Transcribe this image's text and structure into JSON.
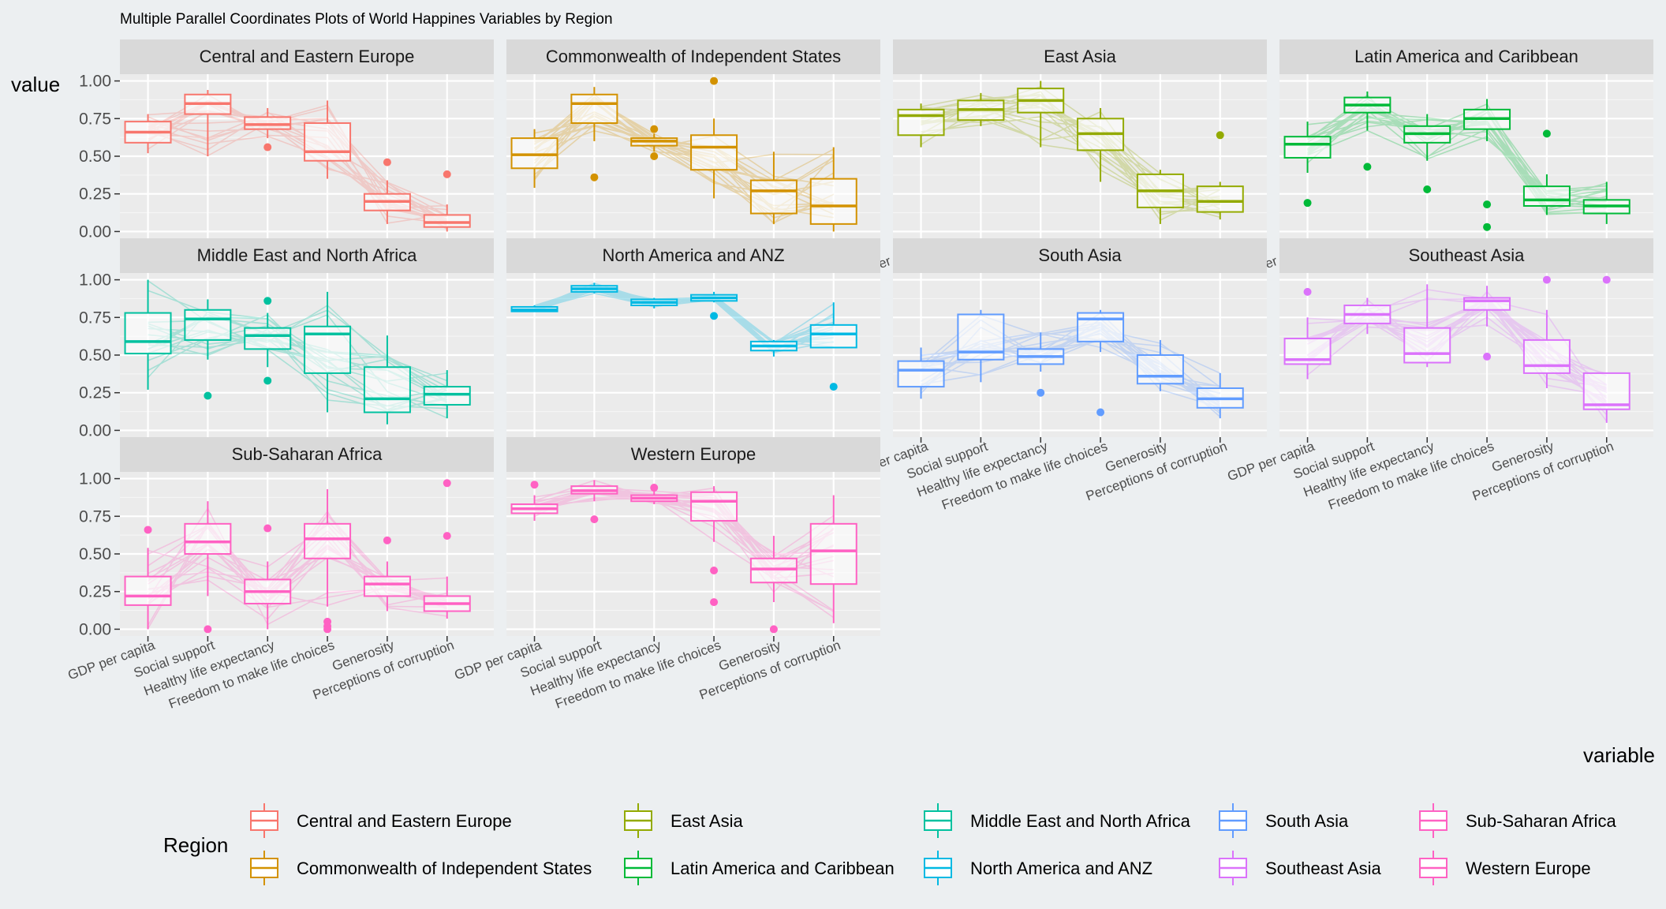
{
  "chart_data": {
    "type": "boxplot-parallel-coordinates",
    "title": "Multiple Parallel Coordinates Plots of World Happines Variables by Region",
    "xlabel": "variable",
    "ylabel": "value",
    "ylim": [
      0,
      1
    ],
    "y_ticks": [
      "0.00",
      "0.25",
      "0.50",
      "0.75",
      "1.00"
    ],
    "variables": [
      "GDP per capita",
      "Social support",
      "Healthy life expectancy",
      "Freedom to make life choices",
      "Generosity",
      "Perceptions of corruption"
    ],
    "legend_title": "Region",
    "legend_position": "bottom",
    "grid": true,
    "panels": [
      {
        "region": "Central and Eastern Europe",
        "color": "#F8766D",
        "boxes": [
          [
            0.52,
            0.59,
            0.66,
            0.73,
            0.78
          ],
          [
            0.5,
            0.78,
            0.85,
            0.91,
            0.94
          ],
          [
            0.62,
            0.68,
            0.71,
            0.76,
            0.82
          ],
          [
            0.35,
            0.47,
            0.53,
            0.72,
            0.87
          ],
          [
            0.05,
            0.14,
            0.2,
            0.25,
            0.34
          ],
          [
            0.0,
            0.03,
            0.06,
            0.11,
            0.18
          ]
        ],
        "outliers": [
          [],
          [],
          [
            0.56
          ],
          [],
          [
            0.46
          ],
          [
            0.38
          ]
        ]
      },
      {
        "region": "Commonwealth of Independent States",
        "color": "#D39200",
        "boxes": [
          [
            0.29,
            0.42,
            0.51,
            0.62,
            0.68
          ],
          [
            0.6,
            0.72,
            0.85,
            0.91,
            0.96
          ],
          [
            0.53,
            0.57,
            0.6,
            0.62,
            0.65
          ],
          [
            0.22,
            0.41,
            0.56,
            0.64,
            0.75
          ],
          [
            0.05,
            0.12,
            0.27,
            0.34,
            0.53
          ],
          [
            0.0,
            0.05,
            0.17,
            0.35,
            0.56
          ]
        ],
        "outliers": [
          [],
          [
            0.36
          ],
          [
            0.68,
            0.5
          ],
          [
            1.0
          ],
          [],
          []
        ]
      },
      {
        "region": "East Asia",
        "color": "#93AA00",
        "boxes": [
          [
            0.56,
            0.64,
            0.77,
            0.81,
            0.85
          ],
          [
            0.7,
            0.74,
            0.81,
            0.87,
            0.92
          ],
          [
            0.56,
            0.79,
            0.87,
            0.95,
            1.0
          ],
          [
            0.33,
            0.54,
            0.65,
            0.75,
            0.82
          ],
          [
            0.05,
            0.16,
            0.27,
            0.38,
            0.41
          ],
          [
            0.08,
            0.13,
            0.2,
            0.3,
            0.33
          ]
        ],
        "outliers": [
          [],
          [],
          [],
          [],
          [],
          [
            0.64
          ]
        ]
      },
      {
        "region": "Latin America and Caribbean",
        "color": "#00BA38",
        "boxes": [
          [
            0.39,
            0.49,
            0.58,
            0.63,
            0.73
          ],
          [
            0.67,
            0.79,
            0.84,
            0.89,
            0.93
          ],
          [
            0.47,
            0.59,
            0.65,
            0.7,
            0.78
          ],
          [
            0.6,
            0.68,
            0.75,
            0.81,
            0.88
          ],
          [
            0.11,
            0.17,
            0.21,
            0.3,
            0.38
          ],
          [
            0.05,
            0.12,
            0.17,
            0.21,
            0.33
          ]
        ],
        "outliers": [
          [
            0.19
          ],
          [
            0.43
          ],
          [
            0.28
          ],
          [
            0.18,
            0.03
          ],
          [
            0.65
          ],
          []
        ]
      },
      {
        "region": "Middle East and North Africa",
        "color": "#00C19F",
        "boxes": [
          [
            0.27,
            0.51,
            0.59,
            0.78,
            1.0
          ],
          [
            0.47,
            0.6,
            0.74,
            0.8,
            0.87
          ],
          [
            0.42,
            0.54,
            0.63,
            0.68,
            0.78
          ],
          [
            0.12,
            0.38,
            0.64,
            0.69,
            0.92
          ],
          [
            0.04,
            0.12,
            0.21,
            0.42,
            0.63
          ],
          [
            0.08,
            0.17,
            0.24,
            0.29,
            0.4
          ]
        ],
        "outliers": [
          [],
          [
            0.23
          ],
          [
            0.86,
            0.33
          ],
          [],
          [],
          []
        ]
      },
      {
        "region": "North America and ANZ",
        "color": "#00B9E3",
        "boxes": [
          [
            0.79,
            0.79,
            0.8,
            0.82,
            0.83
          ],
          [
            0.91,
            0.92,
            0.94,
            0.96,
            0.98
          ],
          [
            0.81,
            0.83,
            0.85,
            0.87,
            0.88
          ],
          [
            0.85,
            0.86,
            0.88,
            0.9,
            0.92
          ],
          [
            0.49,
            0.53,
            0.56,
            0.59,
            0.6
          ],
          [
            0.55,
            0.55,
            0.64,
            0.7,
            0.85
          ]
        ],
        "outliers": [
          [],
          [],
          [],
          [
            0.76
          ],
          [],
          [
            0.29
          ]
        ]
      },
      {
        "region": "South Asia",
        "color": "#619CFF",
        "boxes": [
          [
            0.21,
            0.29,
            0.4,
            0.46,
            0.55
          ],
          [
            0.32,
            0.47,
            0.52,
            0.77,
            0.8
          ],
          [
            0.39,
            0.44,
            0.49,
            0.54,
            0.65
          ],
          [
            0.52,
            0.59,
            0.74,
            0.78,
            0.8
          ],
          [
            0.26,
            0.31,
            0.36,
            0.5,
            0.6
          ],
          [
            0.08,
            0.15,
            0.21,
            0.28,
            0.38
          ]
        ],
        "outliers": [
          [],
          [],
          [
            0.25
          ],
          [
            0.12
          ],
          [],
          []
        ]
      },
      {
        "region": "Southeast Asia",
        "color": "#DB72FB",
        "boxes": [
          [
            0.34,
            0.44,
            0.47,
            0.61,
            0.75
          ],
          [
            0.64,
            0.71,
            0.77,
            0.83,
            0.88
          ],
          [
            0.42,
            0.45,
            0.51,
            0.68,
            0.97
          ],
          [
            0.69,
            0.8,
            0.86,
            0.88,
            0.96
          ],
          [
            0.28,
            0.38,
            0.43,
            0.6,
            0.8
          ],
          [
            0.05,
            0.14,
            0.17,
            0.38,
            0.38
          ]
        ],
        "outliers": [
          [
            0.92
          ],
          [],
          [],
          [
            0.49
          ],
          [
            1.0
          ],
          [
            1.0
          ]
        ]
      },
      {
        "region": "Sub-Saharan Africa",
        "color": "#FF61C3",
        "boxes": [
          [
            0.0,
            0.16,
            0.22,
            0.35,
            0.54
          ],
          [
            0.22,
            0.5,
            0.58,
            0.7,
            0.85
          ],
          [
            0.0,
            0.17,
            0.25,
            0.33,
            0.45
          ],
          [
            0.15,
            0.47,
            0.6,
            0.7,
            0.93
          ],
          [
            0.12,
            0.22,
            0.3,
            0.35,
            0.45
          ],
          [
            0.07,
            0.12,
            0.17,
            0.22,
            0.35
          ]
        ],
        "outliers": [
          [
            0.66
          ],
          [
            0.0
          ],
          [
            0.67
          ],
          [
            0.05,
            0.02,
            0.0
          ],
          [
            0.59
          ],
          [
            0.97,
            0.62
          ]
        ]
      },
      {
        "region": "Western Europe",
        "color": "#FF61C3",
        "boxes": [
          [
            0.72,
            0.77,
            0.8,
            0.83,
            0.89
          ],
          [
            0.85,
            0.9,
            0.92,
            0.95,
            0.99
          ],
          [
            0.83,
            0.85,
            0.87,
            0.89,
            0.92
          ],
          [
            0.58,
            0.72,
            0.85,
            0.91,
            0.95
          ],
          [
            0.18,
            0.31,
            0.4,
            0.47,
            0.62
          ],
          [
            0.04,
            0.3,
            0.52,
            0.7,
            0.89
          ]
        ],
        "outliers": [
          [
            0.96
          ],
          [
            0.73
          ],
          [
            0.94
          ],
          [
            0.39,
            0.18
          ],
          [
            0.0
          ],
          []
        ]
      }
    ],
    "legend_columns": [
      [
        "Central and Eastern Europe",
        "Commonwealth of Independent States"
      ],
      [
        "East Asia",
        "Latin America and Caribbean"
      ],
      [
        "Middle East and North Africa",
        "North America and ANZ"
      ],
      [
        "South Asia",
        "Southeast Asia"
      ],
      [
        "Sub-Saharan Africa",
        "Western Europe"
      ]
    ]
  }
}
